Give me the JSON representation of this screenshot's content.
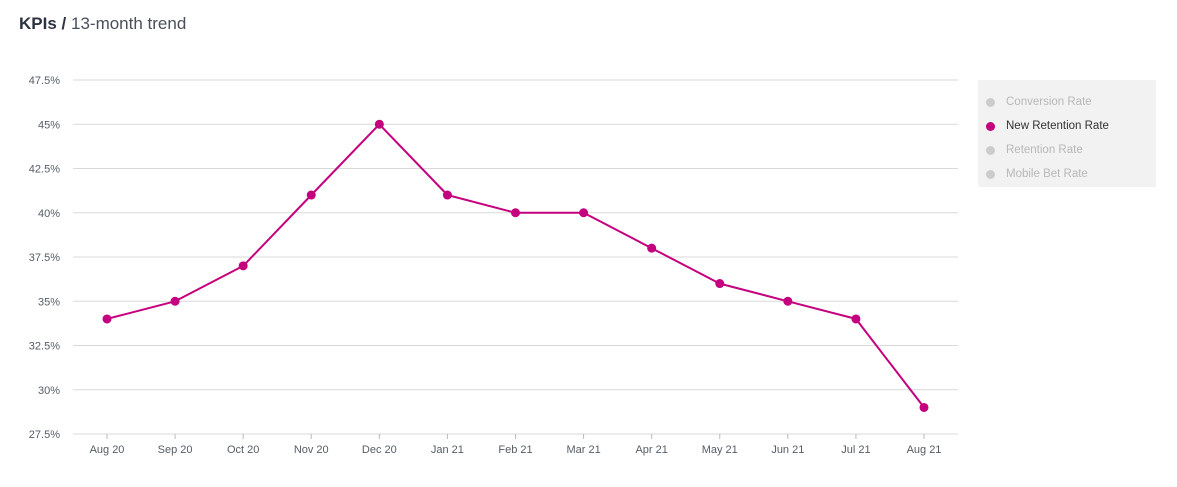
{
  "header": {
    "title": "KPIs",
    "separator": "/",
    "subtitle": "13-month trend"
  },
  "legend": [
    {
      "label": "Conversion Rate",
      "active": false,
      "color": "#cccccc"
    },
    {
      "label": "New Retention Rate",
      "active": true,
      "color": "#c4007e"
    },
    {
      "label": "Retention Rate",
      "active": false,
      "color": "#cccccc"
    },
    {
      "label": "Mobile Bet Rate",
      "active": false,
      "color": "#cccccc"
    }
  ],
  "colors": {
    "series": "#c4007e",
    "grid": "#d9d9d9",
    "inactive_text": "#b8b8b8",
    "active_text": "#333333"
  },
  "chart_data": {
    "type": "line",
    "title": "",
    "xlabel": "",
    "ylabel": "",
    "categories": [
      "Aug 20",
      "Sep 20",
      "Oct 20",
      "Nov 20",
      "Dec 20",
      "Jan 21",
      "Feb 21",
      "Mar 21",
      "Apr 21",
      "May 21",
      "Jun 21",
      "Jul 21",
      "Aug 21"
    ],
    "series": [
      {
        "name": "New Retention Rate",
        "values": [
          34,
          35,
          37,
          41,
          45,
          41,
          40,
          40,
          38,
          36,
          35,
          34,
          29
        ]
      }
    ],
    "ylim": [
      27.5,
      47.5
    ],
    "yticks": [
      27.5,
      30,
      32.5,
      35,
      37.5,
      40,
      42.5,
      45,
      47.5
    ],
    "ytick_labels": [
      "27.5%",
      "30%",
      "32.5%",
      "35%",
      "37.5%",
      "40%",
      "42.5%",
      "45%",
      "47.5%"
    ],
    "grid": true,
    "legend_position": "right"
  }
}
